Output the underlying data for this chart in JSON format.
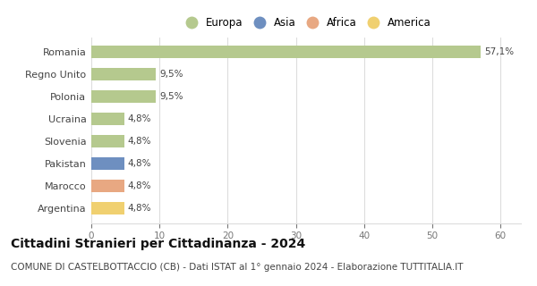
{
  "categories": [
    "Romania",
    "Regno Unito",
    "Polonia",
    "Ucraina",
    "Slovenia",
    "Pakistan",
    "Marocco",
    "Argentina"
  ],
  "values": [
    57.1,
    9.5,
    9.5,
    4.8,
    4.8,
    4.8,
    4.8,
    4.8
  ],
  "labels": [
    "57,1%",
    "9,5%",
    "9,5%",
    "4,8%",
    "4,8%",
    "4,8%",
    "4,8%",
    "4,8%"
  ],
  "bar_colors": [
    "#b5c98e",
    "#b5c98e",
    "#b5c98e",
    "#b5c98e",
    "#b5c98e",
    "#6e8fc0",
    "#e8a882",
    "#f0d070"
  ],
  "continent_colors": {
    "Europa": "#b5c98e",
    "Asia": "#6e8fc0",
    "Africa": "#e8a882",
    "America": "#f0d070"
  },
  "xlim": [
    0,
    63
  ],
  "xticks": [
    0,
    10,
    20,
    30,
    40,
    50,
    60
  ],
  "title": "Cittadini Stranieri per Cittadinanza - 2024",
  "subtitle": "COMUNE DI CASTELBOTTACCIO (CB) - Dati ISTAT al 1° gennaio 2024 - Elaborazione TUTTITALIA.IT",
  "title_fontsize": 10,
  "subtitle_fontsize": 7.5,
  "background_color": "#ffffff",
  "grid_color": "#dddddd",
  "bar_height": 0.55
}
